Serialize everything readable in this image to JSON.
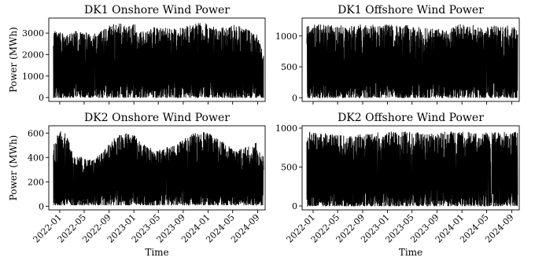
{
  "chart_data": [
    {
      "type": "line",
      "title": "DK1 Onshore Wind Power",
      "xlabel": "",
      "ylabel": "Power (MWh)",
      "xlim": [
        "2021-11-08",
        "2024-10-08"
      ],
      "ylim": [
        -180,
        3700
      ],
      "yticks": [
        0,
        1000,
        2000,
        3000
      ],
      "xticks": [],
      "series": [
        {
          "color": "#000000",
          "x": [
            "2021-12-01",
            "2024-09-30"
          ],
          "y_envelope": [
            [
              0,
              3100
            ],
            [
              30,
              3100
            ],
            [
              60,
              2850
            ],
            [
              100,
              3100
            ],
            [
              200,
              3000
            ],
            [
              300,
              3450
            ],
            [
              400,
              3400
            ],
            [
              450,
              3000
            ],
            [
              500,
              3300
            ],
            [
              600,
              3200
            ],
            [
              700,
              3450
            ],
            [
              760,
              3500
            ],
            [
              800,
              3200
            ],
            [
              850,
              3300
            ],
            [
              900,
              3400
            ],
            [
              960,
              3150
            ],
            [
              1000,
              3000
            ],
            [
              1034,
              2000
            ]
          ],
          "y_min": 0
        }
      ]
    },
    {
      "type": "line",
      "title": "DK1 Offshore Wind Power",
      "xlabel": "",
      "ylabel": "",
      "xlim": [
        "2021-11-08",
        "2024-10-08"
      ],
      "ylim": [
        -60,
        1290
      ],
      "yticks": [
        0,
        500,
        1000
      ],
      "xticks": [],
      "series": [
        {
          "color": "#000000",
          "x": [
            "2021-12-01",
            "2024-09-30"
          ],
          "y_envelope": [
            [
              0,
              1180
            ],
            [
              100,
              1190
            ],
            [
              200,
              1170
            ],
            [
              300,
              1190
            ],
            [
              400,
              1180
            ],
            [
              500,
              1170
            ],
            [
              600,
              1120
            ],
            [
              700,
              1100
            ],
            [
              750,
              1200
            ],
            [
              800,
              1180
            ],
            [
              900,
              1160
            ],
            [
              1000,
              1170
            ],
            [
              1034,
              1170
            ]
          ],
          "y_min": 0
        }
      ]
    },
    {
      "type": "line",
      "title": "DK2 Onshore Wind Power",
      "xlabel": "Time",
      "ylabel": "Power (MWh)",
      "xlim": [
        "2021-11-08",
        "2024-10-08"
      ],
      "ylim": [
        -30,
        660
      ],
      "yticks": [
        0,
        200,
        400,
        600
      ],
      "xticks": [
        "2022-01",
        "2022-05",
        "2022-09",
        "2023-01",
        "2023-05",
        "2023-09",
        "2024-01",
        "2024-05",
        "2024-09"
      ],
      "series": [
        {
          "color": "#000000",
          "x": [
            "2021-12-01",
            "2024-09-30"
          ],
          "y_envelope": [
            [
              0,
              500
            ],
            [
              30,
              620
            ],
            [
              60,
              600
            ],
            [
              100,
              420
            ],
            [
              200,
              380
            ],
            [
              300,
              560
            ],
            [
              350,
              600
            ],
            [
              400,
              580
            ],
            [
              450,
              500
            ],
            [
              500,
              460
            ],
            [
              600,
              500
            ],
            [
              650,
              580
            ],
            [
              700,
              600
            ],
            [
              760,
              610
            ],
            [
              800,
              560
            ],
            [
              850,
              520
            ],
            [
              900,
              450
            ],
            [
              960,
              500
            ],
            [
              1000,
              520
            ],
            [
              1034,
              420
            ]
          ],
          "y_min": 10
        }
      ]
    },
    {
      "type": "line",
      "title": "DK2 Offshore Wind Power",
      "xlabel": "Time",
      "ylabel": "",
      "xlim": [
        "2021-11-08",
        "2024-10-08"
      ],
      "ylim": [
        -50,
        1030
      ],
      "yticks": [
        0,
        500,
        1000
      ],
      "xticks": [
        "2022-01",
        "2022-05",
        "2022-09",
        "2023-01",
        "2023-05",
        "2023-09",
        "2024-01",
        "2024-05",
        "2024-09"
      ],
      "series": [
        {
          "color": "#000000",
          "x": [
            "2021-12-01",
            "2024-09-30"
          ],
          "y_envelope": [
            [
              0,
              950
            ],
            [
              60,
              940
            ],
            [
              200,
              900
            ],
            [
              300,
              930
            ],
            [
              400,
              960
            ],
            [
              500,
              950
            ],
            [
              600,
              930
            ],
            [
              700,
              960
            ],
            [
              800,
              950
            ],
            [
              900,
              940
            ],
            [
              1000,
              950
            ],
            [
              1034,
              950
            ]
          ],
          "y_min": 0
        }
      ]
    }
  ]
}
